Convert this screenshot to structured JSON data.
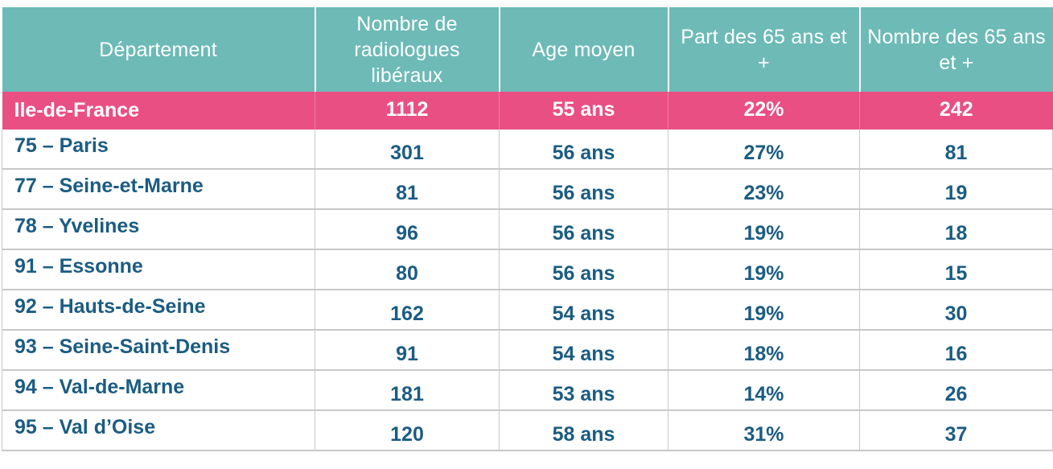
{
  "table": {
    "headers": [
      "Département",
      "Nombre de radiologues libéraux",
      "Age moyen",
      "Part des 65 ans et +",
      "Nombre des 65 ans et +"
    ],
    "region_row": {
      "label": "Ile-de-France",
      "radiologues": "1112",
      "age": "55 ans",
      "part": "22%",
      "nombre_65": "242"
    },
    "rows": [
      {
        "label": "75 – Paris",
        "radiologues": "301",
        "age": "56 ans",
        "part": "27%",
        "nombre_65": "81"
      },
      {
        "label": "77 – Seine-et-Marne",
        "radiologues": "81",
        "age": "56 ans",
        "part": "23%",
        "nombre_65": "19"
      },
      {
        "label": "78 – Yvelines",
        "radiologues": "96",
        "age": "56 ans",
        "part": "19%",
        "nombre_65": "18"
      },
      {
        "label": "91 – Essonne",
        "radiologues": "80",
        "age": "56 ans",
        "part": "19%",
        "nombre_65": "15"
      },
      {
        "label": "92 – Hauts-de-Seine",
        "radiologues": "162",
        "age": "54 ans",
        "part": "19%",
        "nombre_65": "30"
      },
      {
        "label": "93 – Seine-Saint-Denis",
        "radiologues": "91",
        "age": "54 ans",
        "part": "18%",
        "nombre_65": "16"
      },
      {
        "label": "94 – Val-de-Marne",
        "radiologues": "181",
        "age": "53 ans",
        "part": "14%",
        "nombre_65": "26"
      },
      {
        "label": "95 – Val d’Oise",
        "radiologues": "120",
        "age": "58 ans",
        "part": "31%",
        "nombre_65": "37"
      }
    ]
  },
  "colors": {
    "header_bg": "#6dbab7",
    "region_bg": "#e94f83",
    "row_text": "#1b5c82"
  }
}
